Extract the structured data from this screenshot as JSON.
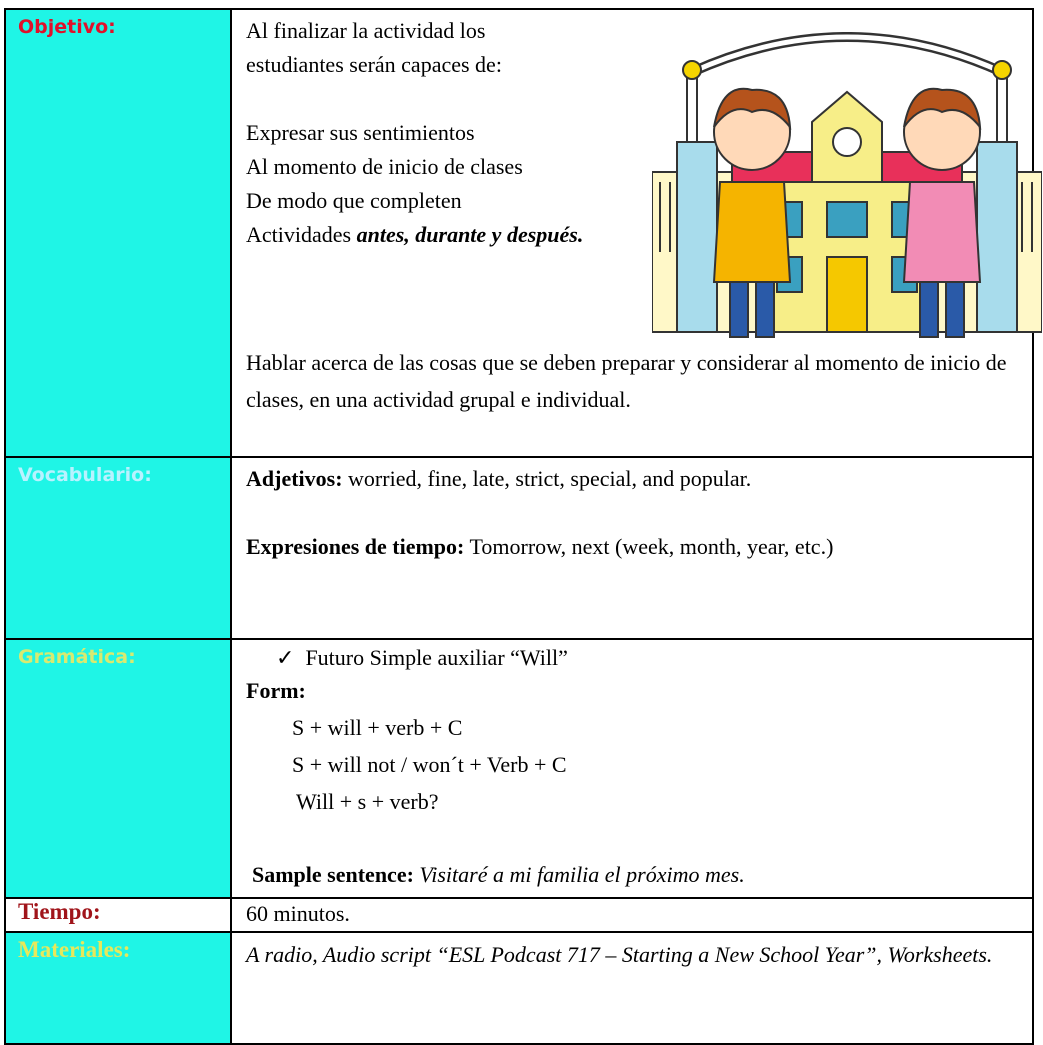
{
  "rows": [
    {
      "label": "Objetivo:",
      "intro": [
        "Al finalizar la actividad los",
        "estudiantes serán capaces de:"
      ],
      "aims": [
        "Expresar sus sentimientos",
        "Al momento de inicio de clases",
        "De modo que completen"
      ],
      "aim_last": "Actividades",
      "aim_emphasis": "antes, durante y después.",
      "paragraph": "Hablar acerca de las cosas que se deben preparar y considerar al momento de inicio de clases, en una actividad grupal e individual."
    },
    {
      "label": "Vocabulario:",
      "items": [
        {
          "term": "Adjetivos:",
          "text": "worried, fine, late, strict, special, and popular."
        },
        {
          "term": "Expresiones de tiempo:",
          "text": "Tomorrow, next (week, month, year, etc.)"
        }
      ]
    },
    {
      "label": "Gramática:",
      "bullet": "✓",
      "topic": "Futuro Simple auxiliar “Will”",
      "form_label": "Form:",
      "forms": [
        "S + will + verb + C",
        "S + will not / won´t + Verb + C",
        "Will + s + verb?"
      ],
      "sample_label": "Sample sentence:",
      "sample": "Visitaré a mi familia el próximo mes."
    },
    {
      "label": "Tiempo:",
      "text": "60 minutos."
    },
    {
      "label": "Materiales:",
      "text": "A radio, Audio script “ESL Podcast 717 – Starting a New School Year”, Worksheets."
    }
  ]
}
